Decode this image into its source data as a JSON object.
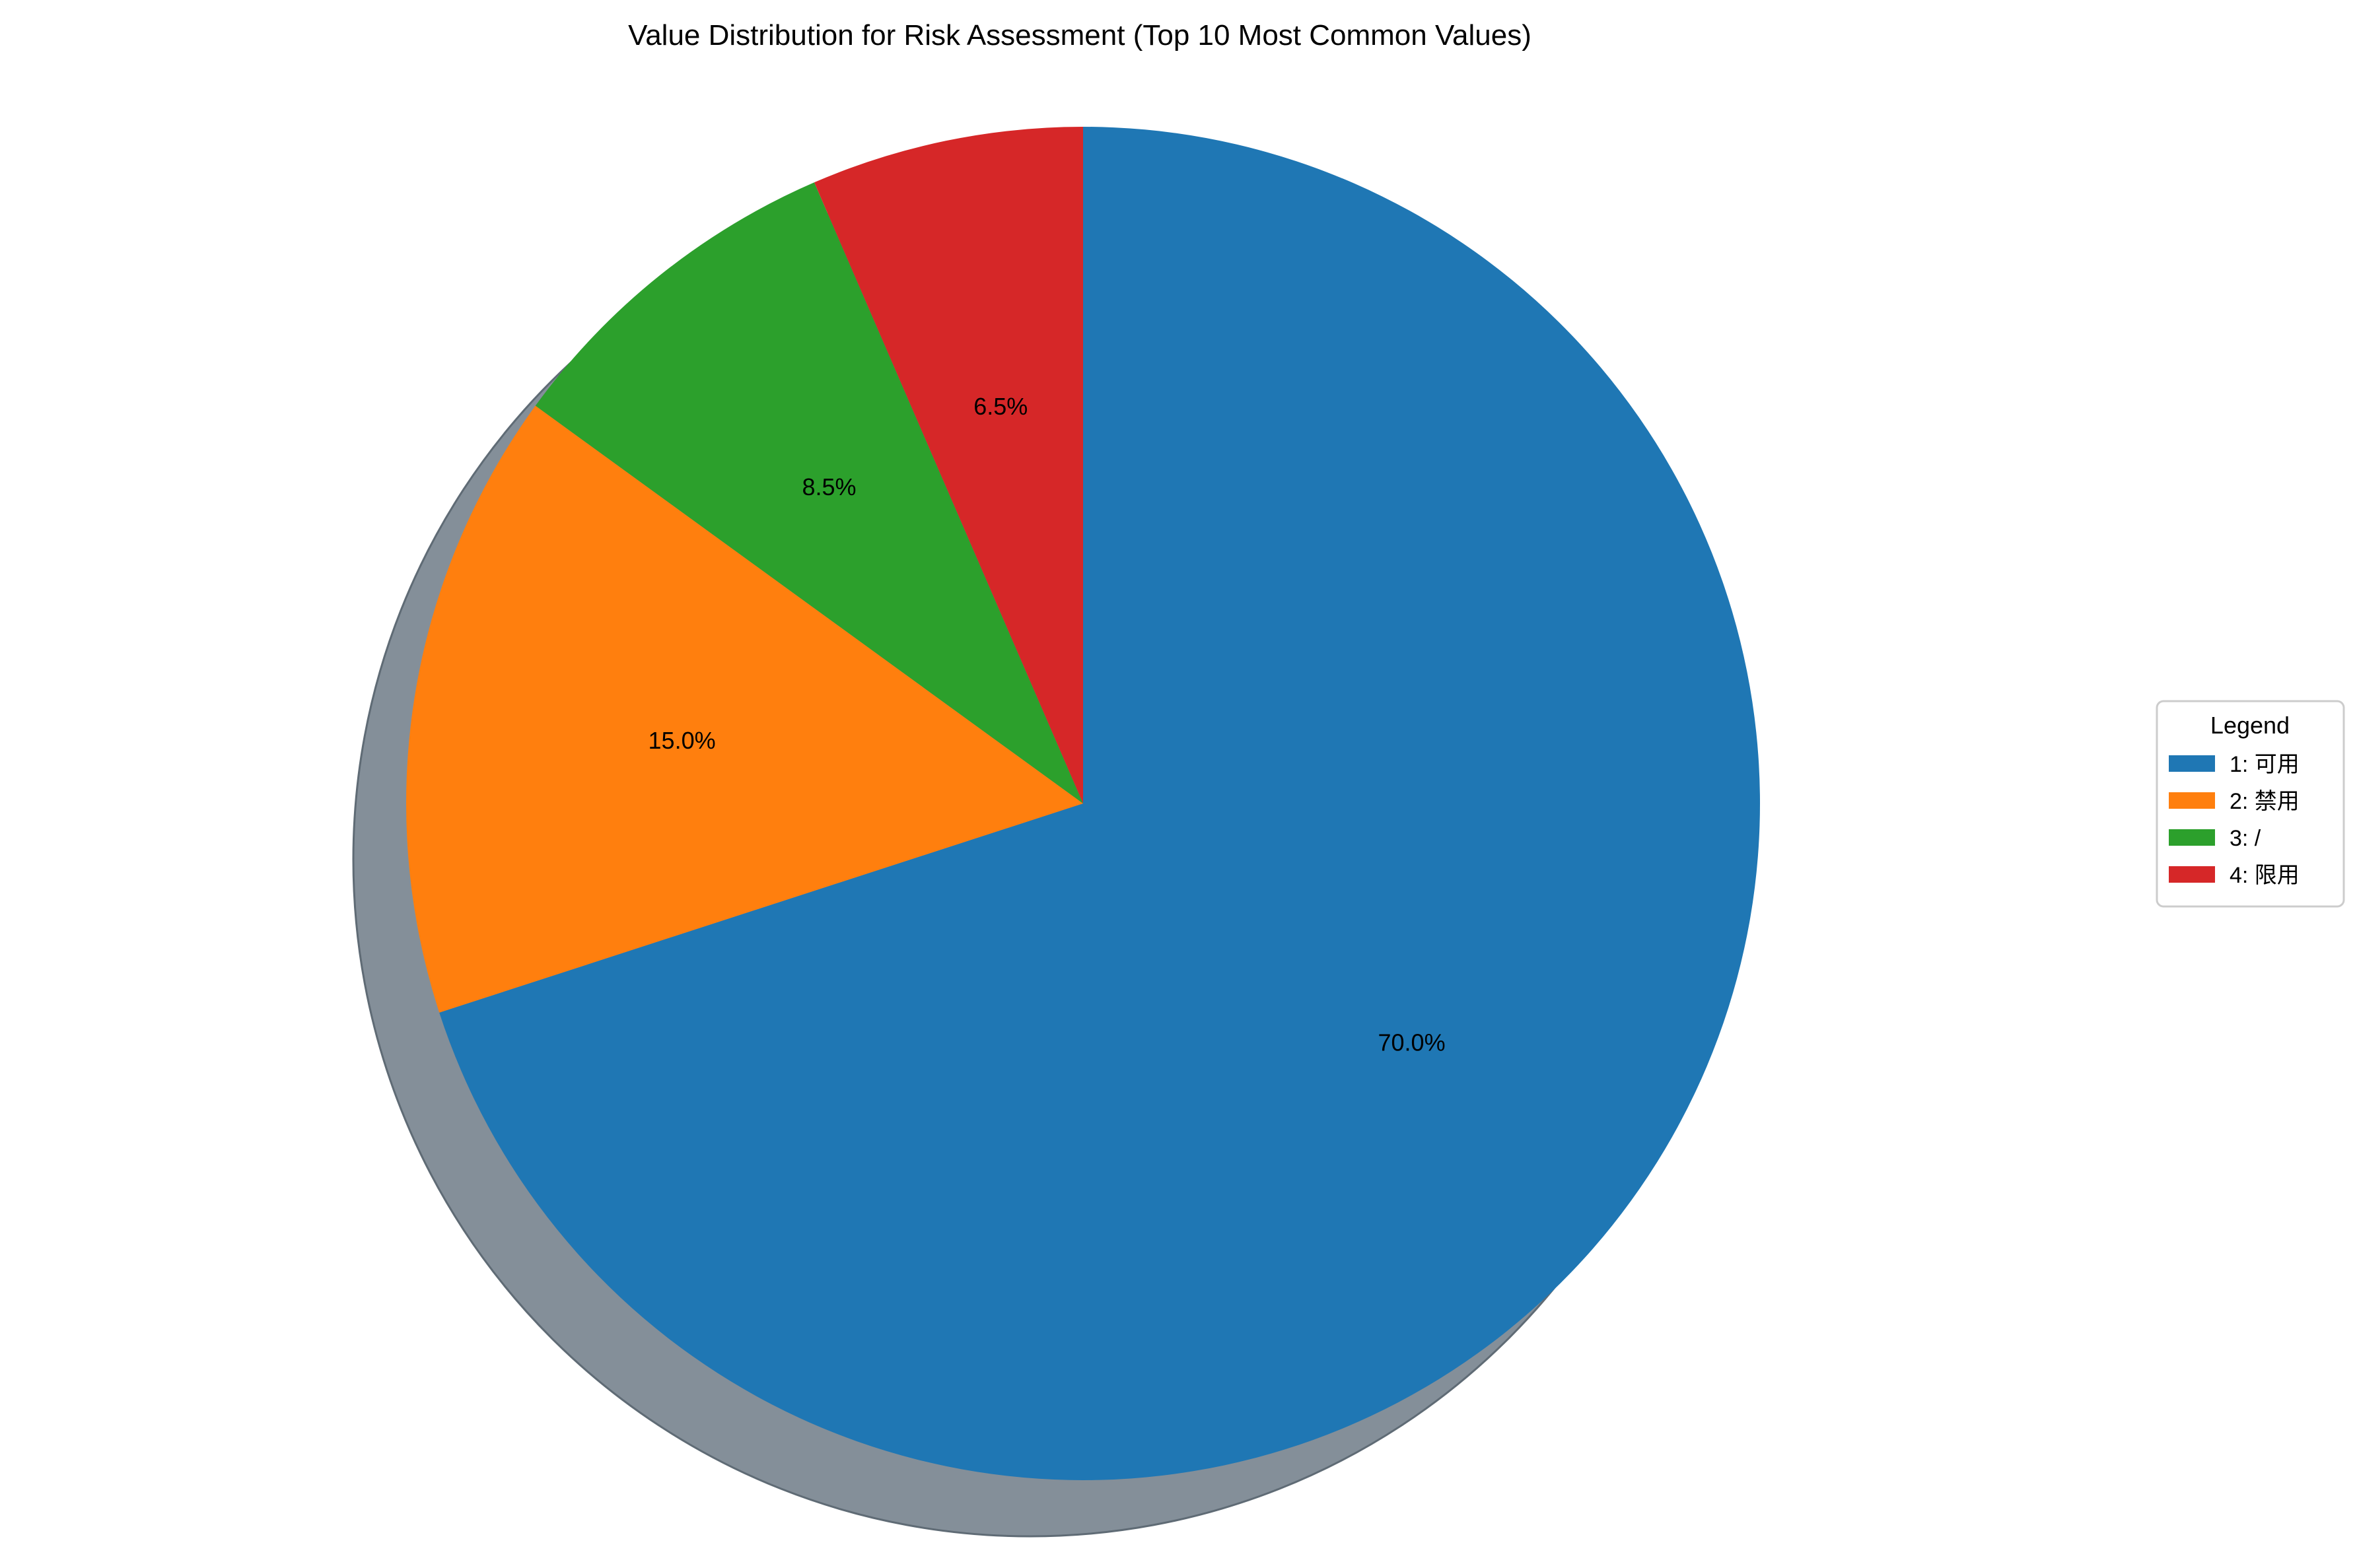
{
  "chart_data": {
    "type": "pie",
    "title": "Value Distribution for Risk Assessment (Top 10 Most Common Values)",
    "categories": [
      "1: 可用",
      "2: 禁用",
      "3: /",
      "4: 限用"
    ],
    "values": [
      70.0,
      15.0,
      8.5,
      6.5
    ],
    "value_labels": [
      "70.0%",
      "15.0%",
      "8.5%",
      "6.5%"
    ],
    "colors": [
      "#1f77b4",
      "#ff7f0e",
      "#2ca02c",
      "#d62728"
    ],
    "start_angle_deg": 90,
    "direction": "clockwise",
    "shadow": true,
    "legend": {
      "title": "Legend",
      "placement": "right"
    }
  }
}
